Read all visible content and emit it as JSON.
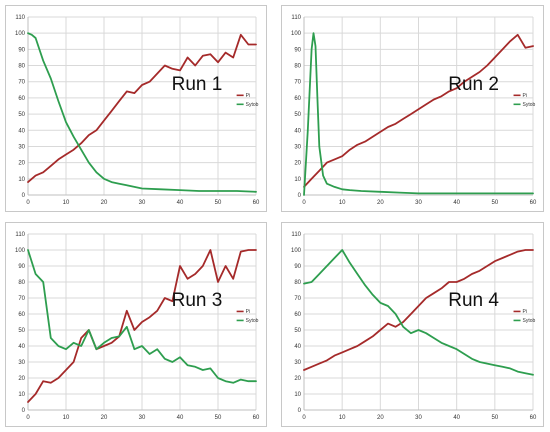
{
  "colors": {
    "pi": "#a52a2a",
    "sytob": "#2e9e4f"
  },
  "chart_data": [
    {
      "type": "line",
      "title": "",
      "annotation": "Run 1",
      "xlabel": "",
      "ylabel": "",
      "xlim": [
        0,
        60
      ],
      "ylim": [
        0,
        110
      ],
      "xticks": [
        0,
        10,
        20,
        30,
        40,
        50,
        60
      ],
      "yticks": [
        0,
        10,
        20,
        30,
        40,
        50,
        60,
        70,
        80,
        90,
        100,
        110
      ],
      "grid": true,
      "legend": "right",
      "series": [
        {
          "name": "Pi",
          "color": "#a52a2a",
          "x": [
            0,
            2,
            4,
            6,
            8,
            10,
            12,
            14,
            16,
            18,
            20,
            22,
            24,
            26,
            28,
            30,
            32,
            34,
            36,
            38,
            40,
            42,
            44,
            46,
            48,
            50,
            52,
            54,
            56,
            58,
            60
          ],
          "y": [
            8,
            12,
            14,
            18,
            22,
            25,
            28,
            32,
            37,
            40,
            46,
            52,
            58,
            64,
            63,
            68,
            70,
            75,
            80,
            78,
            77,
            85,
            80,
            86,
            87,
            82,
            88,
            85,
            99,
            93,
            93
          ]
        },
        {
          "name": "Sytob",
          "color": "#2e9e4f",
          "x": [
            0,
            1,
            2,
            3,
            4,
            6,
            8,
            10,
            12,
            14,
            16,
            18,
            20,
            22,
            24,
            26,
            28,
            30,
            35,
            40,
            45,
            50,
            55,
            60
          ],
          "y": [
            100,
            99,
            97,
            90,
            83,
            72,
            58,
            45,
            36,
            28,
            20,
            14,
            10,
            8,
            7,
            6,
            5,
            4,
            3.5,
            3,
            2.5,
            2.5,
            2.5,
            2
          ]
        }
      ]
    },
    {
      "type": "line",
      "title": "",
      "annotation": "Run 2",
      "xlabel": "",
      "ylabel": "",
      "xlim": [
        0,
        60
      ],
      "ylim": [
        0,
        110
      ],
      "xticks": [
        0,
        10,
        20,
        30,
        40,
        50,
        60
      ],
      "yticks": [
        0,
        10,
        20,
        30,
        40,
        50,
        60,
        70,
        80,
        90,
        100,
        110
      ],
      "grid": true,
      "legend": "right",
      "series": [
        {
          "name": "Pi",
          "color": "#a52a2a",
          "x": [
            0,
            2,
            4,
            6,
            8,
            10,
            12,
            14,
            16,
            18,
            20,
            22,
            24,
            26,
            28,
            30,
            32,
            34,
            36,
            38,
            40,
            42,
            44,
            46,
            48,
            50,
            52,
            54,
            56,
            58,
            60
          ],
          "y": [
            5,
            10,
            15,
            20,
            22,
            24,
            28,
            31,
            33,
            36,
            39,
            42,
            44,
            47,
            50,
            53,
            56,
            59,
            61,
            64,
            66,
            70,
            73,
            76,
            80,
            85,
            90,
            95,
            99,
            91,
            92
          ]
        },
        {
          "name": "Sytob",
          "color": "#2e9e4f",
          "x": [
            0,
            1,
            2,
            2.5,
            3,
            3.5,
            4,
            5,
            6,
            8,
            10,
            12,
            15,
            20,
            25,
            30,
            40,
            50,
            60
          ],
          "y": [
            0,
            40,
            90,
            100,
            92,
            60,
            30,
            12,
            7,
            5,
            3.5,
            3,
            2.5,
            2,
            1.5,
            1,
            1,
            1,
            1
          ]
        }
      ]
    },
    {
      "type": "line",
      "title": "",
      "annotation": "Run 3",
      "xlabel": "",
      "ylabel": "",
      "xlim": [
        0,
        60
      ],
      "ylim": [
        0,
        110
      ],
      "xticks": [
        0,
        10,
        20,
        30,
        40,
        50,
        60
      ],
      "yticks": [
        0,
        10,
        20,
        30,
        40,
        50,
        60,
        70,
        80,
        90,
        100,
        110
      ],
      "grid": true,
      "legend": "right",
      "series": [
        {
          "name": "Pi",
          "color": "#a52a2a",
          "x": [
            0,
            2,
            4,
            6,
            8,
            10,
            12,
            14,
            16,
            18,
            20,
            22,
            24,
            26,
            28,
            30,
            32,
            34,
            36,
            38,
            40,
            42,
            44,
            46,
            48,
            50,
            52,
            54,
            56,
            58,
            60
          ],
          "y": [
            5,
            10,
            18,
            17,
            20,
            25,
            30,
            45,
            50,
            38,
            40,
            42,
            46,
            62,
            50,
            55,
            58,
            62,
            70,
            68,
            90,
            82,
            85,
            90,
            100,
            80,
            90,
            82,
            99,
            100,
            100
          ]
        },
        {
          "name": "Sytob",
          "color": "#2e9e4f",
          "x": [
            0,
            2,
            4,
            6,
            8,
            10,
            12,
            14,
            16,
            18,
            20,
            22,
            24,
            26,
            28,
            30,
            32,
            34,
            36,
            38,
            40,
            42,
            44,
            46,
            48,
            50,
            52,
            54,
            56,
            58,
            60
          ],
          "y": [
            100,
            85,
            80,
            45,
            40,
            38,
            42,
            40,
            50,
            38,
            42,
            45,
            46,
            52,
            38,
            40,
            35,
            38,
            32,
            30,
            33,
            28,
            27,
            25,
            26,
            20,
            18,
            17,
            19,
            18,
            18
          ]
        }
      ]
    },
    {
      "type": "line",
      "title": "",
      "annotation": "Run 4",
      "xlabel": "",
      "ylabel": "",
      "xlim": [
        0,
        60
      ],
      "ylim": [
        0,
        110
      ],
      "xticks": [
        0,
        10,
        20,
        30,
        40,
        50,
        60
      ],
      "yticks": [
        0,
        10,
        20,
        30,
        40,
        50,
        60,
        70,
        80,
        90,
        100,
        110
      ],
      "grid": true,
      "legend": "right",
      "series": [
        {
          "name": "Pi",
          "color": "#a52a2a",
          "x": [
            0,
            2,
            4,
            6,
            8,
            10,
            12,
            14,
            16,
            18,
            20,
            22,
            24,
            26,
            28,
            30,
            32,
            34,
            36,
            38,
            40,
            42,
            44,
            46,
            48,
            50,
            52,
            54,
            56,
            58,
            60
          ],
          "y": [
            25,
            27,
            29,
            31,
            34,
            36,
            38,
            40,
            43,
            46,
            50,
            54,
            52,
            55,
            60,
            65,
            70,
            73,
            76,
            80,
            80,
            82,
            85,
            87,
            90,
            93,
            95,
            97,
            99,
            100,
            100
          ]
        },
        {
          "name": "Sytob",
          "color": "#2e9e4f",
          "x": [
            0,
            2,
            4,
            6,
            8,
            10,
            12,
            14,
            16,
            18,
            20,
            22,
            24,
            26,
            28,
            30,
            32,
            34,
            36,
            38,
            40,
            42,
            44,
            46,
            48,
            50,
            52,
            54,
            56,
            58,
            60
          ],
          "y": [
            79,
            80,
            85,
            90,
            95,
            100,
            92,
            85,
            78,
            72,
            67,
            65,
            60,
            52,
            48,
            50,
            48,
            45,
            42,
            40,
            38,
            35,
            32,
            30,
            29,
            28,
            27,
            26,
            24,
            23,
            22
          ]
        }
      ]
    }
  ]
}
